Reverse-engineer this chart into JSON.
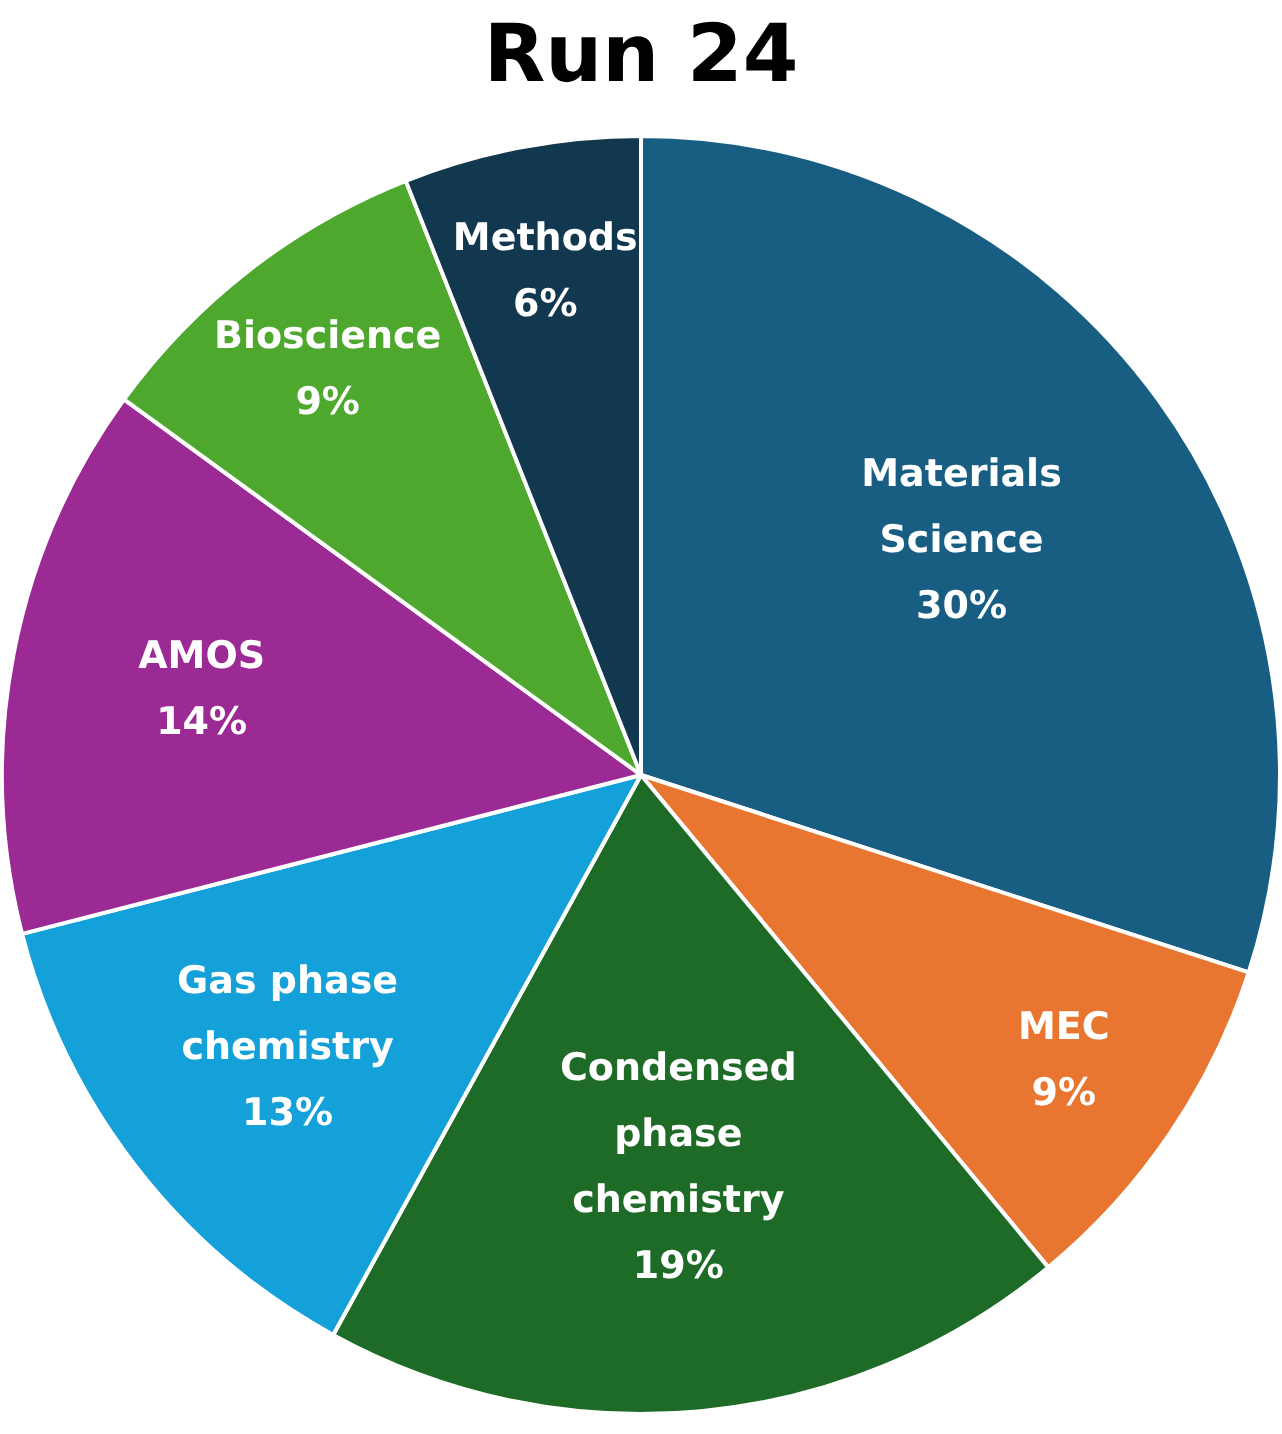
{
  "chart_data": {
    "type": "pie",
    "title": "Run 24",
    "categories": [
      "Materials Science",
      "MEC",
      "Condensed phase chemistry",
      "Gas phase chemistry",
      "AMOS",
      "Bioscience",
      "Methods"
    ],
    "values": [
      30,
      9,
      19,
      13,
      14,
      9,
      6
    ],
    "colors": [
      "#175e82",
      "#e87530",
      "#1e6b28",
      "#14a0d8",
      "#9b2a95",
      "#4ea82e",
      "#11384f"
    ],
    "value_labels": [
      "30%",
      "9%",
      "19%",
      "13%",
      "14%",
      "9%",
      "6%"
    ],
    "legend": false
  }
}
